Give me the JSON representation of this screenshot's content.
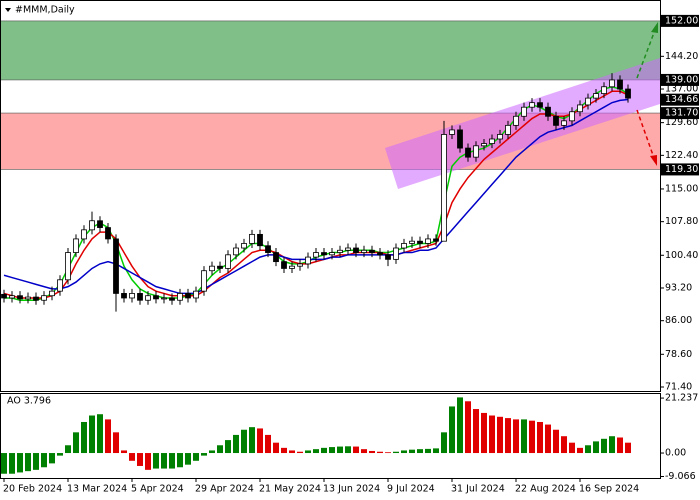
{
  "chart_data": {
    "type": "candlestick",
    "title": "#MMM,Daily",
    "categories": [
      "20 Feb 2024",
      null,
      null,
      null,
      null,
      null,
      null,
      null,
      "13 Mar 2024",
      null,
      null,
      null,
      null,
      null,
      null,
      null,
      "5 Apr 2024",
      null,
      null,
      null,
      null,
      null,
      null,
      null,
      "29 Apr 2024",
      null,
      null,
      null,
      null,
      null,
      null,
      null,
      "21 May 2024",
      null,
      null,
      null,
      null,
      null,
      null,
      null,
      "13 Jun 2024",
      null,
      null,
      null,
      null,
      null,
      null,
      null,
      "9 Jul 2024",
      null,
      null,
      null,
      null,
      null,
      null,
      null,
      "31 Jul 2024",
      null,
      null,
      null,
      null,
      null,
      null,
      null,
      "22 Aug 2024",
      null,
      null,
      null,
      null,
      null,
      null,
      null,
      "16 Sep 2024",
      null,
      null,
      null,
      null,
      null,
      null
    ],
    "candles": {
      "open": [
        91.8,
        91,
        91.5,
        90.8,
        91.2,
        90.5,
        91.5,
        92.5,
        95,
        101,
        104,
        106,
        108,
        106.5,
        104,
        92,
        91,
        92,
        90.5,
        91.5,
        90.8,
        91,
        90.5,
        92,
        91,
        92.5,
        97,
        98,
        97.5,
        100.5,
        102,
        103,
        105,
        102.5,
        101,
        99,
        97.5,
        98,
        98.5,
        100,
        101,
        100.5,
        101,
        101.5,
        102,
        101,
        101.5,
        101,
        100.5,
        99.5,
        102,
        103,
        103.5,
        103,
        104,
        103.5,
        127,
        128,
        124,
        122,
        124.5,
        125,
        126,
        127,
        129,
        131,
        133,
        134,
        133,
        131,
        129,
        130,
        132,
        133.5,
        135,
        136,
        137.5,
        139,
        137
      ],
      "high": [
        92.8,
        92.5,
        92.5,
        92.2,
        92.2,
        92.5,
        93.5,
        96,
        102,
        105,
        107,
        110,
        109,
        107.5,
        105,
        93,
        93,
        93,
        92.5,
        92.5,
        92,
        92,
        93,
        93,
        93.5,
        98,
        99,
        99,
        101.5,
        103,
        104,
        106,
        106,
        103.5,
        102,
        100,
        99,
        99.5,
        101,
        102,
        102,
        102,
        102.5,
        103,
        103,
        102.5,
        102.5,
        102,
        101.5,
        103,
        104,
        104.5,
        104.5,
        105,
        105,
        130,
        129,
        129,
        125,
        125.5,
        126,
        127,
        128,
        130,
        132,
        134,
        135,
        135,
        134,
        132,
        131,
        133,
        134.5,
        136,
        137,
        138.5,
        140.5,
        140,
        138
      ],
      "low": [
        90,
        90,
        89.8,
        89.8,
        89.5,
        89.5,
        90.5,
        91.5,
        94,
        100,
        103,
        105,
        105.5,
        103,
        88,
        90,
        90,
        89.5,
        89.5,
        89.8,
        89.8,
        89.5,
        89.5,
        90,
        90,
        91.5,
        96,
        96.5,
        96.5,
        99.5,
        101,
        102,
        101.5,
        100,
        98,
        96.5,
        96.5,
        97,
        97.5,
        99,
        99.5,
        99.5,
        100,
        100.5,
        100,
        100,
        100,
        99.5,
        98,
        98.5,
        101,
        102,
        102,
        102,
        102.5,
        111,
        126,
        123,
        121,
        121,
        123.5,
        124,
        125,
        126,
        128,
        130,
        132,
        132,
        130,
        128,
        128,
        129,
        131,
        132.5,
        134,
        135,
        136.5,
        136,
        134
      ],
      "close": [
        91,
        91.5,
        90.8,
        91.2,
        90.5,
        91.5,
        92.5,
        95,
        101,
        104,
        106,
        108,
        106.5,
        104,
        92,
        91,
        92,
        90.5,
        91.5,
        90.8,
        91,
        90.5,
        92,
        91,
        92.5,
        97,
        98,
        97.5,
        100.5,
        102,
        103,
        105,
        102.5,
        101,
        99,
        97.5,
        98,
        98.5,
        100,
        101,
        100.5,
        101,
        101.5,
        102,
        101,
        101.5,
        101,
        100.5,
        99.5,
        102,
        103,
        103.5,
        103,
        104,
        103.5,
        127,
        128,
        124,
        122,
        124.5,
        125,
        126,
        127,
        129,
        131,
        133,
        134,
        133,
        131,
        129,
        130,
        132,
        133.5,
        135,
        136,
        137.5,
        139,
        137,
        135
      ]
    },
    "up_color": "#ffffff",
    "down_color": "#000000",
    "indicators": [
      {
        "color": "#00cc00",
        "values": [
          91,
          91,
          90.5,
          90.5,
          90.5,
          91,
          92,
          94,
          97.5,
          101,
          104.5,
          106.5,
          107.5,
          106.5,
          103,
          98,
          95,
          93,
          92,
          91.5,
          91,
          91,
          91,
          91.5,
          92,
          94,
          96,
          97.5,
          98.5,
          100,
          101.5,
          103,
          103,
          102,
          100.5,
          99,
          98.5,
          98.5,
          99,
          100,
          100.5,
          101,
          101,
          101.5,
          101.5,
          101.5,
          101.5,
          101,
          101,
          101.5,
          102,
          102.5,
          103,
          103,
          103.5,
          112,
          120,
          122,
          123,
          123.5,
          124,
          125,
          126.5,
          128.5,
          130.5,
          132.5,
          133.5,
          133,
          132,
          131,
          130.5,
          131.5,
          133,
          134.5,
          136,
          137,
          137.5,
          137,
          136
        ]
      },
      {
        "color": "#e00000",
        "values": [
          92,
          91.5,
          91,
          91,
          91,
          91,
          91.5,
          92.5,
          95,
          98.5,
          101.5,
          104,
          105.5,
          105.5,
          104,
          101,
          98,
          95.5,
          93.5,
          92.5,
          92,
          91.5,
          91.5,
          91.5,
          91.5,
          92.5,
          94,
          95.5,
          96.5,
          98,
          99.5,
          101,
          101.5,
          101.5,
          101,
          100,
          99,
          98.5,
          98.5,
          99,
          99.5,
          100,
          100.5,
          100.5,
          101,
          101,
          101,
          101,
          100.5,
          100.5,
          101,
          101.5,
          102,
          102.5,
          103,
          107,
          112,
          115,
          117.5,
          119.5,
          121.5,
          123,
          124.5,
          126,
          127.5,
          129,
          130.5,
          131.5,
          131.5,
          131,
          131,
          131.5,
          132.5,
          133.5,
          134.5,
          135.5,
          136.5,
          136.5,
          135.7
        ]
      },
      {
        "color": "#0000c8",
        "values": [
          96,
          95.5,
          95,
          94.5,
          94,
          93.5,
          93,
          93,
          93.5,
          94.5,
          96,
          97.5,
          98.5,
          99,
          98.5,
          97.5,
          96.5,
          95.5,
          94.5,
          93.5,
          93,
          92.5,
          92,
          92,
          92,
          93,
          94,
          95,
          96,
          97,
          98,
          99,
          100,
          100.5,
          100.5,
          100,
          99.5,
          99.5,
          99.5,
          99.5,
          99.5,
          100,
          100,
          100.5,
          100.5,
          100.5,
          100.5,
          100.5,
          100.5,
          100.5,
          101,
          101,
          101.5,
          101.5,
          102,
          104,
          106,
          108,
          110,
          112,
          114,
          116,
          118,
          120,
          122,
          123.5,
          125,
          126.5,
          127.5,
          128,
          128.5,
          129,
          130,
          131,
          132,
          133,
          134,
          134.5,
          134.7
        ]
      }
    ],
    "ylim": [
      70.3,
      156.6
    ],
    "yticks": [
      {
        "value": 152,
        "label": "152.00"
      },
      {
        "value": 144.2,
        "label": "144.20"
      },
      {
        "value": 137,
        "label": "137.00"
      },
      {
        "value": 129.6,
        "label": "129.60"
      },
      {
        "value": 122.4,
        "label": "122.40"
      },
      {
        "value": 115,
        "label": "115.00"
      },
      {
        "value": 107.8,
        "label": "107.80"
      },
      {
        "value": 100.4,
        "label": "100.40"
      },
      {
        "value": 93.2,
        "label": "93.20"
      },
      {
        "value": 86,
        "label": "86.00"
      },
      {
        "value": 78.6,
        "label": "78.60"
      },
      {
        "value": 71.4,
        "label": "71.40"
      }
    ],
    "levels": [
      {
        "value": 152,
        "label": "152.00"
      },
      {
        "value": 139,
        "label": "139.00"
      },
      {
        "value": 134.66,
        "label": "134.66"
      },
      {
        "value": 131.7,
        "label": "131.70"
      },
      {
        "value": 119.3,
        "label": "119.30"
      }
    ],
    "zones": [
      {
        "from": 139,
        "to": 152,
        "color": "#80c088"
      },
      {
        "from": 119.3,
        "to": 131.7,
        "color": "#ffaaaa"
      }
    ],
    "ao_label": "AO 3.796",
    "ao_values": [
      -8,
      -8,
      -7.5,
      -7,
      -6.5,
      -5.5,
      -4,
      -1,
      3,
      8,
      12,
      14.5,
      15,
      13,
      8,
      1,
      -3,
      -5,
      -6.5,
      -6,
      -6,
      -6,
      -5.5,
      -4.5,
      -3,
      -1,
      1,
      3,
      5,
      7,
      9,
      10,
      9.5,
      7,
      4,
      2,
      1,
      0.5,
      1,
      1.5,
      2,
      2.3,
      2.5,
      2.6,
      2.5,
      1.5,
      0.8,
      0.5,
      0.3,
      0.5,
      1,
      1.3,
      1.5,
      1.6,
      1.8,
      8,
      18,
      21.5,
      20,
      17,
      15.5,
      14.5,
      14,
      13.5,
      13,
      13,
      12.5,
      12,
      11,
      9,
      6.5,
      4,
      2,
      3,
      4.5,
      5.5,
      6.5,
      6,
      4
    ],
    "ao_up_color": "#008000",
    "ao_down_color": "#e00000",
    "y2lim": [
      -9.65,
      23.2
    ],
    "y2ticks": [
      21.237,
      {
        "value": 0,
        "label": "0.00"
      },
      -9.066
    ]
  }
}
